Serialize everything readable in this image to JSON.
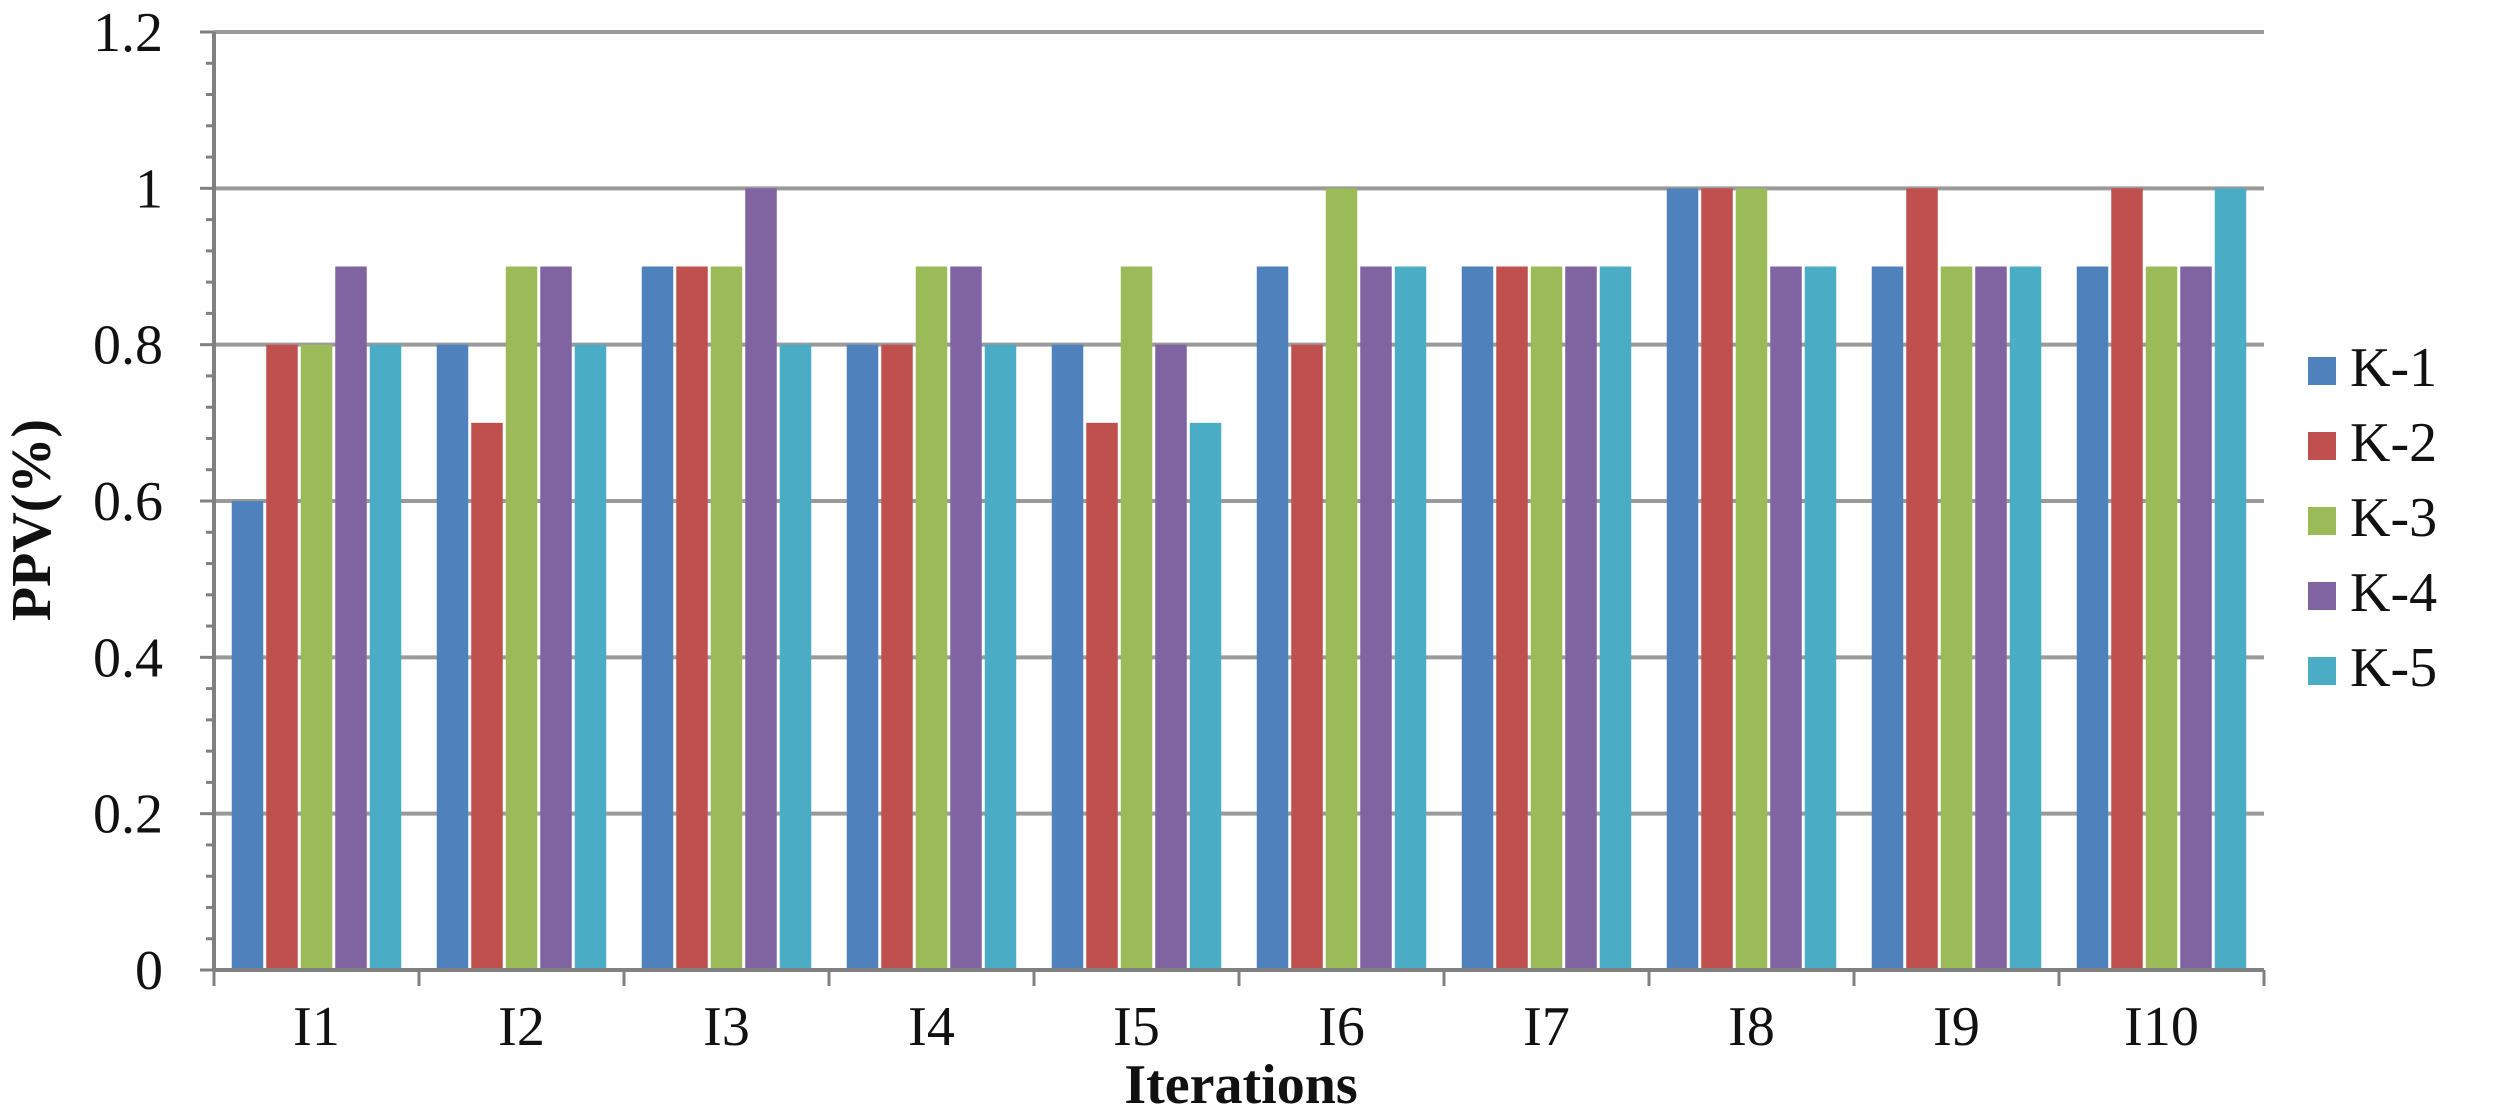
{
  "chart_data": {
    "type": "bar",
    "title": "",
    "xlabel": "Iterations",
    "ylabel": "PPV(%)",
    "ylim": [
      0,
      1.2
    ],
    "yticks": [
      "0",
      "0.2",
      "0.4",
      "0.6",
      "0.8",
      "1",
      "1.2"
    ],
    "grid": true,
    "legend_position": "right",
    "categories": [
      "I1",
      "I2",
      "I3",
      "I4",
      "I5",
      "I6",
      "I7",
      "I8",
      "I9",
      "I10"
    ],
    "series": [
      {
        "name": "K-1",
        "color": "#4F81BD",
        "values": [
          0.6,
          0.8,
          0.9,
          0.8,
          0.8,
          0.9,
          0.9,
          1.0,
          0.9,
          0.9
        ]
      },
      {
        "name": "K-2",
        "color": "#C0504D",
        "values": [
          0.8,
          0.7,
          0.9,
          0.8,
          0.7,
          0.8,
          0.9,
          1.0,
          1.0,
          1.0
        ]
      },
      {
        "name": "K-3",
        "color": "#9BBB59",
        "values": [
          0.8,
          0.9,
          0.9,
          0.9,
          0.9,
          1.0,
          0.9,
          1.0,
          0.9,
          0.9
        ]
      },
      {
        "name": "K-4",
        "color": "#8064A2",
        "values": [
          0.9,
          0.9,
          1.0,
          0.9,
          0.8,
          0.9,
          0.9,
          0.9,
          0.9,
          0.9
        ]
      },
      {
        "name": "K-5",
        "color": "#4BACC6",
        "values": [
          0.8,
          0.8,
          0.8,
          0.8,
          0.7,
          0.9,
          0.9,
          0.9,
          0.9,
          1.0
        ]
      }
    ]
  }
}
